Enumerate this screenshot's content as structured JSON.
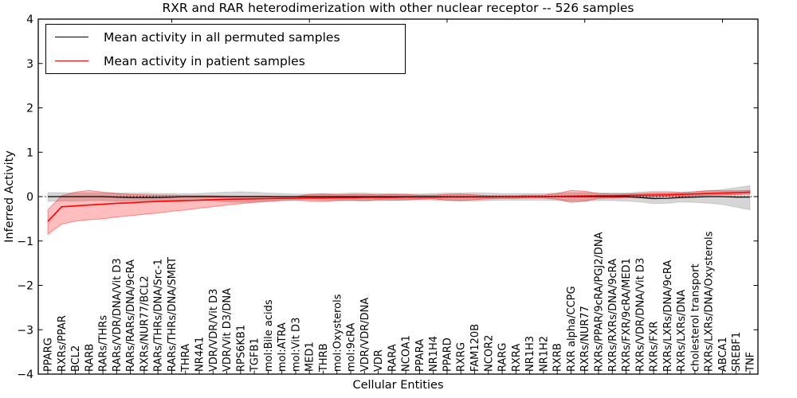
{
  "chart_data": {
    "type": "line",
    "title": "RXR and RAR heterodimerization with other nuclear receptor -- 526 samples",
    "xlabel": "Cellular Entities",
    "ylabel": "Inferred Activity",
    "ylim": [
      -4,
      4
    ],
    "y_tick_labels": [
      "4",
      "3",
      "2",
      "1",
      "0",
      "−1",
      "−2",
      "−3",
      "−4"
    ],
    "y_tick_values": [
      4,
      3,
      2,
      1,
      0,
      -1,
      -2,
      -3,
      -4
    ],
    "x_major_tick_indices": [
      9,
      19,
      29,
      39,
      49
    ],
    "grid": false,
    "zero_reference_line": true,
    "legend_position": "upper left",
    "categories": [
      "PPARG",
      "RXRs/PPAR",
      "BCL2",
      "RARB",
      "RARs/THRs",
      "RARs/VDR/DNA/Vit D3",
      "RARs/RARs/DNA/9cRA",
      "RXRs/NUR77/BCL2",
      "RARs/THRs/DNA/Src-1",
      "RARs/THRs/DNA/SMRT",
      "THRA",
      "NR4A1",
      "VDR/VDR/Vit D3",
      "VDR/Vit D3/DNA",
      "RPS6KB1",
      "TGFB1",
      "mol:Bile acids",
      "mol:ATRA",
      "mol:Vit D3",
      "MED1",
      "THRB",
      "mol:Oxysterols",
      "mol:9cRA",
      "VDR/VDR/DNA",
      "VDR",
      "RARA",
      "NCOA1",
      "PPARA",
      "NR1H4",
      "PPARD",
      "RXRG",
      "FAM120B",
      "NCOR2",
      "RARG",
      "RXRA",
      "NR1H3",
      "NR1H2",
      "RXRB",
      "RXR alpha/CCPG",
      "RXRs/NUR77",
      "RXRs/PPAR/9cRA/PGJ2/DNA",
      "RXRs/RXRs/DNA/9cRA",
      "RXRs/FXR/9cRA/MED1",
      "RXRs/VDR/DNA/Vit D3",
      "RXRs/FXR",
      "RXRs/LXRs/DNA/9cRA",
      "RXRs/LXRs/DNA",
      "cholesterol transport",
      "RXRs/LXRs/DNA/Oxysterols",
      "ABCA1",
      "SREBF1",
      "TNF"
    ],
    "series": [
      {
        "name": "Mean activity in all permuted samples",
        "color": "#000000",
        "band_color": "rgba(0,0,0,0.16)",
        "band_edge_color": "rgba(0,0,0,0.12)",
        "values": [
          0,
          0,
          0,
          0,
          0,
          -0.01,
          -0.02,
          -0.02,
          -0.02,
          -0.01,
          0,
          0,
          0,
          0,
          0,
          0,
          0,
          0,
          0,
          0,
          0,
          0,
          0,
          0,
          0,
          0,
          0,
          0,
          0,
          0,
          0,
          0,
          0,
          0,
          0,
          0,
          0,
          0,
          0,
          0,
          0,
          0,
          0,
          -0.02,
          -0.045,
          -0.04,
          -0.02,
          -0.01,
          0,
          0,
          -0.01,
          -0.01
        ],
        "band_lower": [
          -0.11,
          -0.1,
          -0.1,
          -0.09,
          -0.09,
          -0.1,
          -0.1,
          -0.09,
          -0.09,
          -0.09,
          -0.08,
          -0.08,
          -0.1,
          -0.12,
          -0.13,
          -0.12,
          -0.1,
          -0.08,
          -0.07,
          -0.07,
          -0.08,
          -0.08,
          -0.09,
          -0.1,
          -0.09,
          -0.08,
          -0.07,
          -0.07,
          -0.08,
          -0.09,
          -0.1,
          -0.1,
          -0.09,
          -0.08,
          -0.08,
          -0.08,
          -0.08,
          -0.09,
          -0.1,
          -0.1,
          -0.09,
          -0.09,
          -0.1,
          -0.12,
          -0.16,
          -0.15,
          -0.12,
          -0.13,
          -0.15,
          -0.18,
          -0.24,
          -0.3
        ],
        "band_upper": [
          0.09,
          0.09,
          0.08,
          0.08,
          0.08,
          0.08,
          0.08,
          0.08,
          0.07,
          0.07,
          0.07,
          0.07,
          0.09,
          0.1,
          0.11,
          0.1,
          0.08,
          0.07,
          0.06,
          0.06,
          0.07,
          0.07,
          0.08,
          0.08,
          0.07,
          0.07,
          0.06,
          0.06,
          0.07,
          0.08,
          0.08,
          0.09,
          0.08,
          0.07,
          0.07,
          0.07,
          0.07,
          0.08,
          0.09,
          0.09,
          0.08,
          0.08,
          0.08,
          0.1,
          0.12,
          0.12,
          0.1,
          0.11,
          0.13,
          0.16,
          0.2,
          0.25
        ]
      },
      {
        "name": "Mean activity in patient samples",
        "color": "#ff0000",
        "band_color": "rgba(255,0,0,0.26)",
        "band_edge_color": "rgba(255,0,0,0.40)",
        "values": [
          -0.56,
          -0.23,
          -0.21,
          -0.19,
          -0.17,
          -0.15,
          -0.14,
          -0.12,
          -0.11,
          -0.1,
          -0.09,
          -0.08,
          -0.07,
          -0.06,
          -0.055,
          -0.05,
          -0.045,
          -0.04,
          -0.035,
          -0.03,
          -0.03,
          -0.025,
          -0.025,
          -0.02,
          -0.02,
          -0.02,
          -0.015,
          -0.015,
          -0.015,
          -0.01,
          -0.01,
          -0.01,
          -0.01,
          -0.005,
          -0.005,
          0,
          0,
          0.005,
          0.01,
          0.015,
          0.02,
          0.02,
          0.025,
          0.03,
          0.035,
          0.04,
          0.05,
          0.06,
          0.07,
          0.08,
          0.09,
          0.1
        ],
        "band_lower": [
          -0.85,
          -0.62,
          -0.55,
          -0.52,
          -0.5,
          -0.46,
          -0.43,
          -0.4,
          -0.37,
          -0.33,
          -0.3,
          -0.26,
          -0.23,
          -0.19,
          -0.16,
          -0.13,
          -0.11,
          -0.09,
          -0.08,
          -0.1,
          -0.11,
          -0.09,
          -0.08,
          -0.09,
          -0.07,
          -0.08,
          -0.08,
          -0.06,
          -0.05,
          -0.08,
          -0.09,
          -0.07,
          -0.05,
          -0.04,
          -0.04,
          -0.03,
          -0.03,
          -0.06,
          -0.13,
          -0.1,
          -0.04,
          -0.03,
          -0.02,
          -0.02,
          -0.01,
          0.0,
          0.01,
          0.02,
          0.03,
          0.04,
          0.05,
          0.06
        ],
        "band_upper": [
          -0.3,
          0.02,
          0.1,
          0.14,
          0.1,
          0.07,
          0.05,
          0.04,
          0.03,
          0.03,
          0.02,
          0.02,
          0.02,
          0.01,
          0.01,
          0.01,
          0.01,
          0.0,
          0.0,
          0.05,
          0.06,
          0.04,
          0.05,
          0.05,
          0.04,
          0.05,
          0.05,
          0.03,
          0.03,
          0.05,
          0.06,
          0.04,
          0.02,
          0.02,
          0.02,
          0.03,
          0.03,
          0.07,
          0.14,
          0.12,
          0.07,
          0.06,
          0.06,
          0.07,
          0.08,
          0.08,
          0.09,
          0.11,
          0.14,
          0.13,
          0.13,
          0.14
        ]
      }
    ]
  }
}
